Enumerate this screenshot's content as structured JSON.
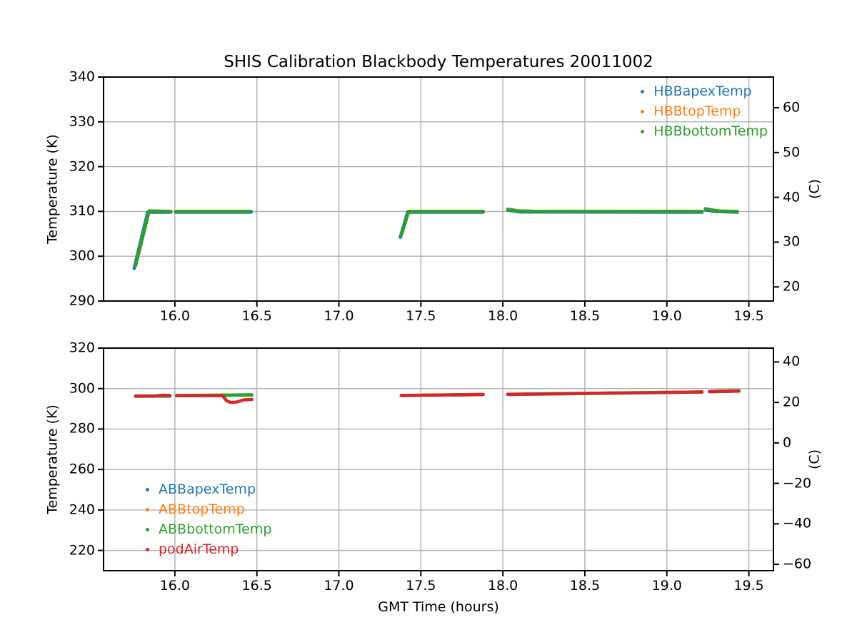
{
  "figure": {
    "title": "SHIS Calibration Blackbody Temperatures 20011002",
    "xlabel": "GMT Time (hours)"
  },
  "colors": {
    "blue": "#1f77b4",
    "orange": "#ff7f0e",
    "green": "#2ca02c",
    "red": "#d62728",
    "grid": "#b0b0b0",
    "spine": "#000000",
    "background": "#ffffff"
  },
  "chart_data": [
    {
      "type": "scatter",
      "name": "hbb-temps",
      "ylabel_left": "Temperature (K)",
      "ylabel_right": "(C)",
      "xlim": [
        15.565,
        19.65
      ],
      "ylim": [
        290,
        340
      ],
      "grid": true,
      "xticks": [
        {
          "v": 16.0,
          "label": "16.0"
        },
        {
          "v": 16.5,
          "label": "16.5"
        },
        {
          "v": 17.0,
          "label": "17.0"
        },
        {
          "v": 17.5,
          "label": "17.5"
        },
        {
          "v": 18.0,
          "label": "18.0"
        },
        {
          "v": 18.5,
          "label": "18.5"
        },
        {
          "v": 19.0,
          "label": "19.0"
        },
        {
          "v": 19.5,
          "label": "19.5"
        }
      ],
      "yticks_left": [
        {
          "v": 290,
          "label": "290"
        },
        {
          "v": 300,
          "label": "300"
        },
        {
          "v": 310,
          "label": "310"
        },
        {
          "v": 320,
          "label": "320"
        },
        {
          "v": 330,
          "label": "330"
        },
        {
          "v": 340,
          "label": "340"
        }
      ],
      "yticks_right": [
        {
          "v": 293.15,
          "label": "20"
        },
        {
          "v": 303.15,
          "label": "30"
        },
        {
          "v": 313.15,
          "label": "40"
        },
        {
          "v": 323.15,
          "label": "50"
        },
        {
          "v": 333.15,
          "label": "60"
        }
      ],
      "legend": {
        "position": "upper-right",
        "entries": [
          {
            "label": "HBBapexTemp",
            "color": "#1f77b4"
          },
          {
            "label": "HBBtopTemp",
            "color": "#ff7f0e"
          },
          {
            "label": "HBBbottomTemp",
            "color": "#2ca02c"
          }
        ]
      },
      "series": [
        {
          "name": "HBBapexTemp",
          "color": "#1f77b4",
          "width": 4.8,
          "segments": [
            [
              [
                15.752,
                297.3
              ],
              [
                15.835,
                309.85
              ],
              [
                15.975,
                309.85
              ]
            ],
            [
              [
                16.005,
                309.85
              ],
              [
                16.465,
                309.85
              ]
            ],
            [
              [
                17.375,
                304.25
              ],
              [
                17.42,
                309.85
              ],
              [
                17.88,
                309.85
              ]
            ],
            [
              [
                18.03,
                310.3
              ],
              [
                18.1,
                309.9
              ],
              [
                19.215,
                309.85
              ]
            ],
            [
              [
                19.235,
                310.4
              ],
              [
                19.29,
                310.0
              ],
              [
                19.43,
                309.85
              ]
            ]
          ]
        },
        {
          "name": "HBBtopTemp",
          "color": "#ff7f0e",
          "width": 4.6,
          "segments": [
            [
              [
                15.76,
                297.9
              ],
              [
                15.843,
                310.1
              ],
              [
                15.975,
                310.0
              ]
            ],
            [
              [
                16.005,
                310.0
              ],
              [
                16.465,
                310.0
              ]
            ],
            [
              [
                17.382,
                304.8
              ],
              [
                17.425,
                310.0
              ],
              [
                17.88,
                310.0
              ]
            ],
            [
              [
                18.03,
                310.5
              ],
              [
                18.09,
                310.15
              ],
              [
                18.2,
                310.0
              ],
              [
                19.215,
                310.0
              ]
            ],
            [
              [
                19.235,
                310.6
              ],
              [
                19.28,
                310.3
              ],
              [
                19.33,
                310.05
              ],
              [
                19.43,
                310.0
              ]
            ]
          ]
        },
        {
          "name": "HBBbottomTemp",
          "color": "#2ca02c",
          "width": 4.6,
          "segments": [
            [
              [
                15.76,
                297.9
              ],
              [
                15.843,
                310.1
              ],
              [
                15.975,
                310.0
              ]
            ],
            [
              [
                16.005,
                310.0
              ],
              [
                16.465,
                310.0
              ]
            ],
            [
              [
                17.382,
                304.8
              ],
              [
                17.425,
                310.0
              ],
              [
                17.88,
                310.0
              ]
            ],
            [
              [
                18.03,
                310.5
              ],
              [
                18.09,
                310.15
              ],
              [
                18.2,
                310.0
              ],
              [
                19.215,
                310.0
              ]
            ],
            [
              [
                19.235,
                310.6
              ],
              [
                19.28,
                310.3
              ],
              [
                19.33,
                310.05
              ],
              [
                19.43,
                310.0
              ]
            ]
          ]
        }
      ]
    },
    {
      "type": "scatter",
      "name": "abb-temps",
      "ylabel_left": "Temperature (K)",
      "ylabel_right": "(C)",
      "xlim": [
        15.565,
        19.65
      ],
      "ylim": [
        210,
        320
      ],
      "grid": true,
      "xticks": [
        {
          "v": 16.0,
          "label": "16.0"
        },
        {
          "v": 16.5,
          "label": "16.5"
        },
        {
          "v": 17.0,
          "label": "17.0"
        },
        {
          "v": 17.5,
          "label": "17.5"
        },
        {
          "v": 18.0,
          "label": "18.0"
        },
        {
          "v": 18.5,
          "label": "18.5"
        },
        {
          "v": 19.0,
          "label": "19.0"
        },
        {
          "v": 19.5,
          "label": "19.5"
        }
      ],
      "yticks_left": [
        {
          "v": 220,
          "label": "220"
        },
        {
          "v": 240,
          "label": "240"
        },
        {
          "v": 260,
          "label": "260"
        },
        {
          "v": 280,
          "label": "280"
        },
        {
          "v": 300,
          "label": "300"
        },
        {
          "v": 320,
          "label": "320"
        }
      ],
      "yticks_right": [
        {
          "v": 313.15,
          "label": "40"
        },
        {
          "v": 293.15,
          "label": "20"
        },
        {
          "v": 273.15,
          "label": "0"
        },
        {
          "v": 253.15,
          "label": "−20"
        },
        {
          "v": 233.15,
          "label": "−40"
        },
        {
          "v": 213.15,
          "label": "−60"
        }
      ],
      "legend": {
        "position": "lower-left",
        "entries": [
          {
            "label": "ABBapexTemp",
            "color": "#1f77b4"
          },
          {
            "label": "ABBtopTemp",
            "color": "#ff7f0e"
          },
          {
            "label": "ABBbottomTemp",
            "color": "#2ca02c"
          },
          {
            "label": "podAirTemp",
            "color": "#d62728"
          }
        ]
      },
      "series": [
        {
          "name": "ABBapexTemp",
          "color": "#1f77b4",
          "width": 4.4,
          "segments": [
            [
              [
                15.76,
                296.15
              ],
              [
                15.97,
                296.25
              ]
            ],
            [
              [
                16.01,
                296.45
              ],
              [
                16.47,
                296.75
              ]
            ],
            [
              [
                17.38,
                296.5
              ],
              [
                17.88,
                297.0
              ]
            ],
            [
              [
                18.03,
                297.1
              ],
              [
                19.215,
                298.25
              ]
            ],
            [
              [
                19.26,
                298.45
              ],
              [
                19.44,
                298.75
              ]
            ]
          ]
        },
        {
          "name": "ABBtopTemp",
          "color": "#ff7f0e",
          "width": 4.4,
          "segments": [
            [
              [
                15.76,
                296.25
              ],
              [
                15.97,
                296.35
              ]
            ],
            [
              [
                16.01,
                296.55
              ],
              [
                16.47,
                296.9
              ]
            ],
            [
              [
                17.38,
                296.6
              ],
              [
                17.88,
                297.1
              ]
            ],
            [
              [
                18.03,
                297.2
              ],
              [
                19.215,
                298.35
              ]
            ],
            [
              [
                19.26,
                298.55
              ],
              [
                19.44,
                298.9
              ]
            ]
          ]
        },
        {
          "name": "ABBbottomTemp",
          "color": "#2ca02c",
          "width": 4.4,
          "segments": [
            [
              [
                15.76,
                296.25
              ],
              [
                15.97,
                296.35
              ]
            ],
            [
              [
                16.01,
                296.55
              ],
              [
                16.47,
                296.9
              ]
            ],
            [
              [
                17.38,
                296.6
              ],
              [
                17.88,
                297.1
              ]
            ],
            [
              [
                18.03,
                297.2
              ],
              [
                19.215,
                298.35
              ]
            ],
            [
              [
                19.26,
                298.55
              ],
              [
                19.44,
                298.9
              ]
            ]
          ]
        },
        {
          "name": "podAirTemp",
          "color": "#d62728",
          "width": 4.4,
          "segments": [
            [
              [
                15.76,
                296.35
              ],
              [
                15.88,
                296.35
              ],
              [
                15.93,
                296.75
              ],
              [
                15.97,
                296.6
              ]
            ],
            [
              [
                16.01,
                296.55
              ],
              [
                16.29,
                296.5
              ],
              [
                16.315,
                294.0
              ],
              [
                16.34,
                293.15
              ],
              [
                16.375,
                293.3
              ],
              [
                16.42,
                294.4
              ],
              [
                16.47,
                294.6
              ]
            ],
            [
              [
                17.38,
                296.6
              ],
              [
                17.88,
                297.1
              ]
            ],
            [
              [
                18.03,
                297.15
              ],
              [
                19.215,
                298.3
              ]
            ],
            [
              [
                19.26,
                298.5
              ],
              [
                19.44,
                298.75
              ]
            ]
          ]
        }
      ]
    }
  ]
}
